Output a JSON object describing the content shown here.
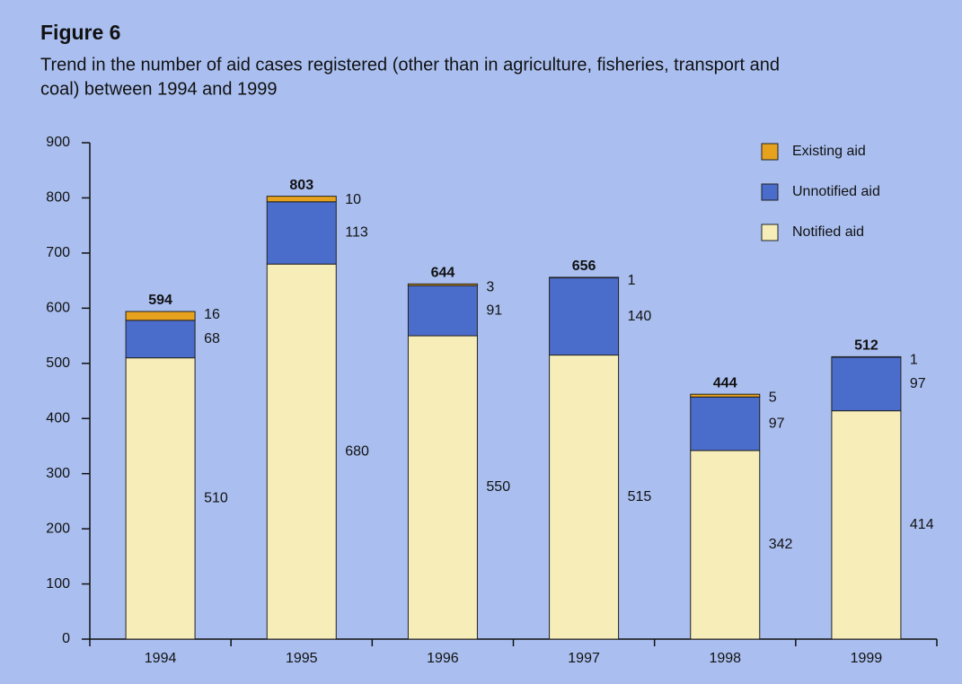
{
  "chart_data": {
    "type": "stacked_bar",
    "title": "Figure 6",
    "subtitle": [
      "Trend in the number of aid cases registered (other than in agriculture, fisheries, transport and",
      "coal) between 1994 and 1999"
    ],
    "categories": [
      "1994",
      "1995",
      "1996",
      "1997",
      "1998",
      "1999"
    ],
    "series": [
      {
        "name": "Notified aid",
        "color": "#f7edb9",
        "values": [
          510,
          680,
          550,
          515,
          342,
          414
        ]
      },
      {
        "name": "Unnotified aid",
        "color": "#4a6ccb",
        "values": [
          68,
          113,
          91,
          140,
          97,
          97
        ]
      },
      {
        "name": "Existing aid",
        "color": "#e7a21d",
        "values": [
          16,
          10,
          3,
          1,
          5,
          1
        ]
      }
    ],
    "totals": [
      594,
      803,
      644,
      656,
      444,
      512
    ],
    "ylim": [
      0,
      900
    ],
    "yticks": [
      0,
      100,
      200,
      300,
      400,
      500,
      600,
      700,
      800,
      900
    ],
    "legend": "upper right"
  }
}
